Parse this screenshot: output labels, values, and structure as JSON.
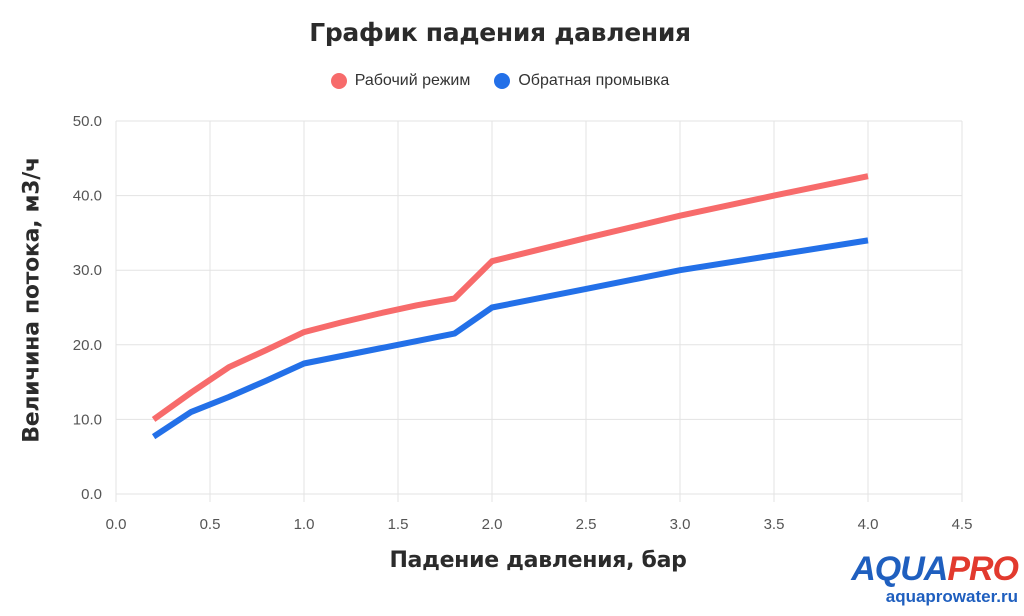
{
  "chart_data": {
    "type": "line",
    "title": "График падения давления",
    "xlabel": "Падение давления, бар",
    "ylabel": "Величина потока, м3/ч",
    "xlim": [
      0,
      4.5
    ],
    "ylim": [
      0,
      50
    ],
    "xticks": [
      "0.0",
      "0.5",
      "1.0",
      "1.5",
      "2.0",
      "2.5",
      "3.0",
      "3.5",
      "4.0",
      "4.5"
    ],
    "yticks": [
      "0.0",
      "10.0",
      "20.0",
      "30.0",
      "40.0",
      "50.0"
    ],
    "grid": true,
    "legend_position": "top-center",
    "series": [
      {
        "name": "Рабочий режим",
        "color": "#f76b6b",
        "points": [
          [
            0.2,
            10
          ],
          [
            0.4,
            13.6
          ],
          [
            0.6,
            17
          ],
          [
            0.8,
            19.3
          ],
          [
            1.0,
            21.7
          ],
          [
            1.2,
            23
          ],
          [
            1.4,
            24.2
          ],
          [
            1.6,
            25.3
          ],
          [
            1.8,
            26.2
          ],
          [
            2.0,
            31.2
          ],
          [
            2.5,
            34.3
          ],
          [
            3.0,
            37.3
          ],
          [
            3.5,
            40
          ],
          [
            4.0,
            42.6
          ]
        ]
      },
      {
        "name": "Обратная промывка",
        "color": "#2370e8",
        "points": [
          [
            0.2,
            7.7
          ],
          [
            0.4,
            11
          ],
          [
            0.6,
            13
          ],
          [
            0.8,
            15.2
          ],
          [
            1.0,
            17.5
          ],
          [
            1.2,
            18.5
          ],
          [
            1.4,
            19.5
          ],
          [
            1.6,
            20.5
          ],
          [
            1.8,
            21.5
          ],
          [
            2.0,
            25
          ],
          [
            2.5,
            27.5
          ],
          [
            3.0,
            30
          ],
          [
            3.5,
            32
          ],
          [
            4.0,
            34
          ]
        ]
      }
    ]
  },
  "logo": {
    "brand_a": "AQUA",
    "brand_b": "PRO",
    "url": "aquaprowater.ru"
  }
}
